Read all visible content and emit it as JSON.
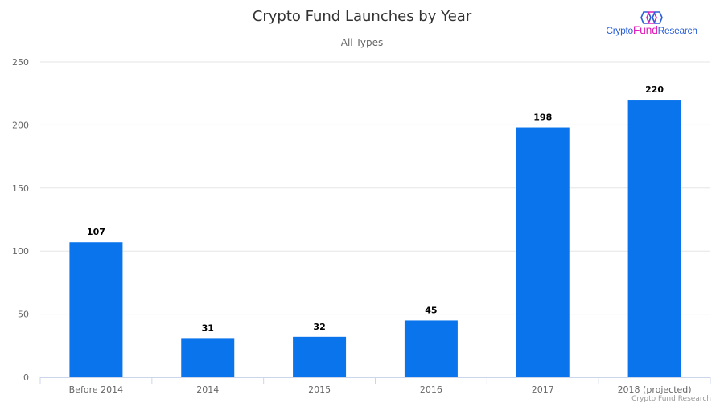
{
  "chart_data": {
    "type": "bar",
    "title": "Crypto Fund Launches by Year",
    "subtitle": "All Types",
    "categories": [
      "Before 2014",
      "2014",
      "2015",
      "2016",
      "2017",
      "2018 (projected)"
    ],
    "values": [
      107,
      31,
      32,
      45,
      198,
      220
    ],
    "ylim": [
      0,
      250
    ],
    "yticks": [
      0,
      50,
      100,
      150,
      200,
      250
    ],
    "grid": true,
    "data_labels": true,
    "bar_color": "#0A74ED",
    "credit": "Crypto Fund Research"
  },
  "logo": {
    "part1": "Crypto",
    "part2": "Fund",
    "part3": "Research",
    "color_blue": "#2B5FD9",
    "color_magenta": "#E020B8"
  }
}
